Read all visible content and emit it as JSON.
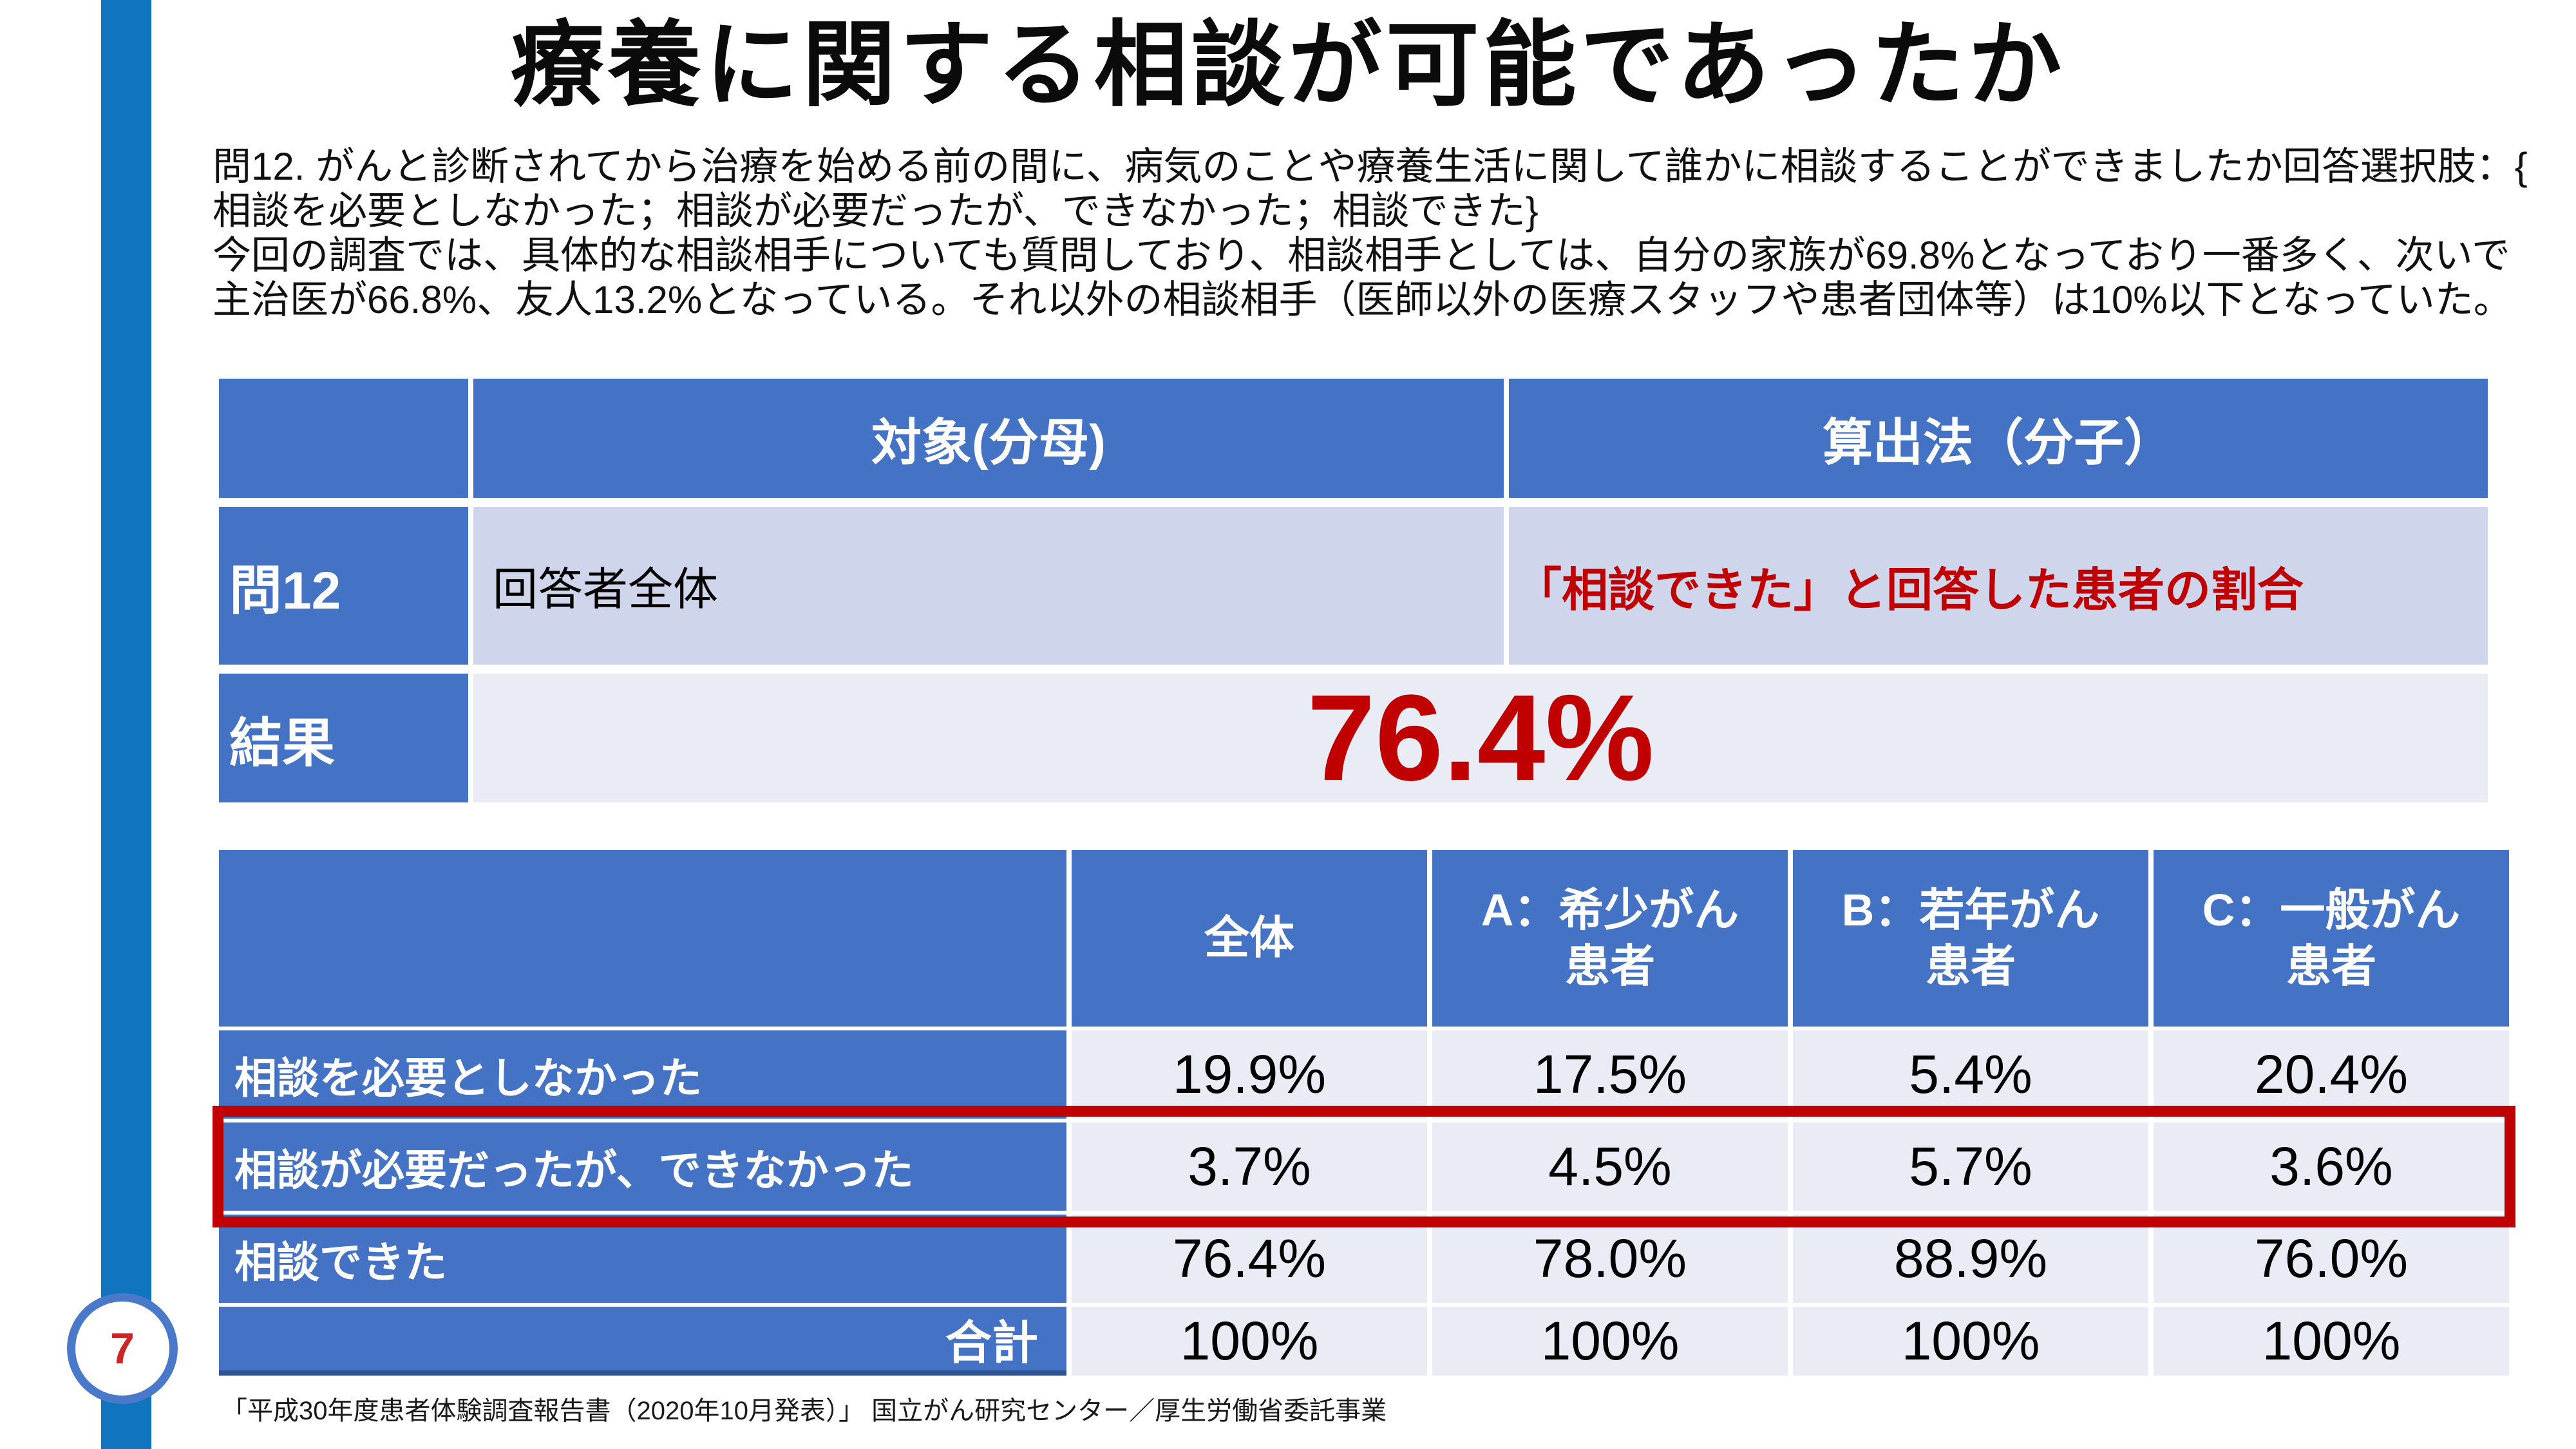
{
  "slide": {
    "title": "療養に関する相談が可能であったか",
    "description": {
      "lines": [
        "問12. がんと診断されてから治療を始める前の間に、病気のことや療養生活に関して誰かに相談することができましたか回答選択肢：{",
        "相談を必要としなかった；相談が必要だったが、できなかった；相談できた}",
        "今回の調査では、具体的な相談相手についても質問しており、相談相手としては、自分の家族が69.8%となっており一番多く、次いで",
        "主治医が66.8%、友人13.2%となっている。それ以外の相談相手（医師以外の医療スタッフや患者団体等）は10%以下となっていた。"
      ]
    },
    "page_number": "7",
    "footer": "「平成30年度患者体験調査報告書（2020年10月発表）」 国立がん研究センター／厚生労働省委託事業",
    "colors": {
      "accent_bar_blue": "#1174BE",
      "table_header_blue": "#4472C4",
      "band_dark": "#CFD5EA",
      "band_light": "#E9EBF5",
      "dark_red": "#C00000",
      "page_number_red": "#CE2423"
    }
  },
  "summary_table": {
    "header": {
      "denominator": "対象(分母)",
      "numerator": "算出法（分子）"
    },
    "question_row": {
      "label": "問12",
      "denominator": "回答者全体",
      "numerator": "「相談できた」と回答した患者の割合"
    },
    "result_row": {
      "label": "結果",
      "value": "76.4%"
    }
  },
  "breakdown_table": {
    "column_headers": [
      {
        "label": "全体",
        "display": "全体"
      },
      {
        "label": "A：希少がん患者",
        "display": "A：希少がん\n患者"
      },
      {
        "label": "B：若年がん患者",
        "display": "B：若年がん\n患者"
      },
      {
        "label": "C：一般がん患者",
        "display": "C：一般がん\n患者"
      }
    ],
    "rows": [
      {
        "label": "相談を必要としなかった",
        "values": [
          "19.9%",
          "17.5%",
          "5.4%",
          "20.4%"
        ],
        "highlighted": false
      },
      {
        "label": "相談が必要だったが、できなかった",
        "values": [
          "3.7%",
          "4.5%",
          "5.7%",
          "3.6%"
        ],
        "highlighted": true
      },
      {
        "label": "相談できた",
        "values": [
          "76.4%",
          "78.0%",
          "88.9%",
          "76.0%"
        ],
        "highlighted": false
      },
      {
        "label": "合計",
        "values": [
          "100%",
          "100%",
          "100%",
          "100%"
        ],
        "highlighted": false
      }
    ]
  }
}
